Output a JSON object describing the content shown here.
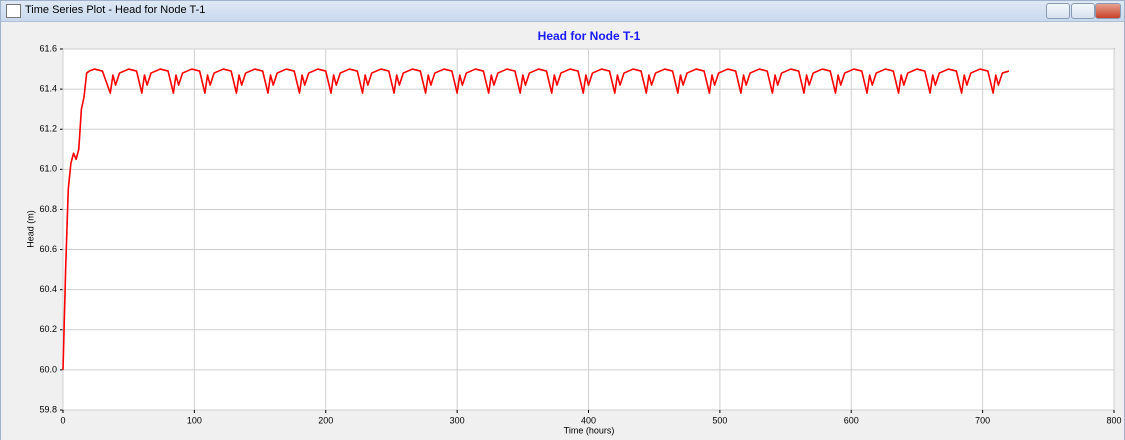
{
  "window": {
    "title": "Time Series Plot - Head for Node T-1"
  },
  "chart_data": {
    "type": "line",
    "title": "Head for Node T-1",
    "xlabel": "Time (hours)",
    "ylabel": "Head (m)",
    "color": "#ff0000",
    "grid": true,
    "xlim": [
      0,
      800
    ],
    "xticks": [
      0,
      100,
      200,
      300,
      400,
      500,
      600,
      700,
      800
    ],
    "ylim": [
      59.8,
      61.6
    ],
    "yticks": [
      59.8,
      {
        "value": 60,
        "label": "60.0"
      },
      60.2,
      60.4,
      60.6,
      60.8,
      {
        "value": 61,
        "label": "61.0"
      },
      61.2,
      61.4,
      61.6
    ],
    "x": [
      0,
      2,
      4,
      6,
      8,
      10,
      12,
      14,
      16,
      18,
      20,
      24,
      30,
      36,
      38,
      40,
      43,
      50,
      56,
      60,
      62,
      64,
      67,
      74,
      80,
      84,
      86,
      88,
      91,
      98,
      104,
      108,
      110,
      112,
      115,
      122,
      128,
      132,
      134,
      136,
      139,
      146,
      152,
      156,
      158,
      160,
      163,
      170,
      176,
      180,
      182,
      184,
      187,
      194,
      200,
      204,
      206,
      208,
      211,
      218,
      224,
      228,
      230,
      232,
      235,
      242,
      248,
      252,
      254,
      256,
      259,
      266,
      272,
      276,
      278,
      280,
      283,
      290,
      296,
      300,
      302,
      304,
      307,
      314,
      320,
      324,
      326,
      328,
      331,
      338,
      344,
      348,
      350,
      352,
      355,
      362,
      368,
      372,
      374,
      376,
      379,
      386,
      392,
      396,
      398,
      400,
      403,
      410,
      416,
      420,
      422,
      424,
      427,
      434,
      440,
      444,
      446,
      448,
      451,
      458,
      464,
      468,
      470,
      472,
      475,
      482,
      488,
      492,
      494,
      496,
      499,
      506,
      512,
      516,
      518,
      520,
      523,
      530,
      536,
      540,
      542,
      544,
      547,
      554,
      560,
      564,
      566,
      568,
      571,
      578,
      584,
      588,
      590,
      592,
      595,
      602,
      608,
      612,
      614,
      616,
      619,
      626,
      632,
      636,
      638,
      640,
      643,
      650,
      656,
      660,
      662,
      664,
      667,
      674,
      680,
      684,
      686,
      688,
      691,
      698,
      704,
      708,
      710,
      712,
      715,
      720
    ],
    "values": [
      60.0,
      60.5,
      60.9,
      61.03,
      61.08,
      61.05,
      61.1,
      61.3,
      61.36,
      61.48,
      61.49,
      61.5,
      61.49,
      61.38,
      61.47,
      61.42,
      61.48,
      61.5,
      61.49,
      61.38,
      61.47,
      61.42,
      61.48,
      61.5,
      61.49,
      61.38,
      61.47,
      61.42,
      61.48,
      61.5,
      61.49,
      61.38,
      61.47,
      61.42,
      61.48,
      61.5,
      61.49,
      61.38,
      61.47,
      61.42,
      61.48,
      61.5,
      61.49,
      61.38,
      61.47,
      61.42,
      61.48,
      61.5,
      61.49,
      61.38,
      61.47,
      61.42,
      61.48,
      61.5,
      61.49,
      61.38,
      61.47,
      61.42,
      61.48,
      61.5,
      61.49,
      61.38,
      61.47,
      61.42,
      61.48,
      61.5,
      61.49,
      61.38,
      61.47,
      61.42,
      61.48,
      61.5,
      61.49,
      61.38,
      61.47,
      61.42,
      61.48,
      61.5,
      61.49,
      61.38,
      61.47,
      61.42,
      61.48,
      61.5,
      61.49,
      61.38,
      61.47,
      61.42,
      61.48,
      61.5,
      61.49,
      61.38,
      61.47,
      61.42,
      61.48,
      61.5,
      61.49,
      61.38,
      61.47,
      61.42,
      61.48,
      61.5,
      61.49,
      61.38,
      61.47,
      61.42,
      61.48,
      61.5,
      61.49,
      61.38,
      61.47,
      61.42,
      61.48,
      61.5,
      61.49,
      61.38,
      61.47,
      61.42,
      61.48,
      61.5,
      61.49,
      61.38,
      61.47,
      61.42,
      61.48,
      61.5,
      61.49,
      61.38,
      61.47,
      61.42,
      61.48,
      61.5,
      61.49,
      61.38,
      61.47,
      61.42,
      61.48,
      61.5,
      61.49,
      61.38,
      61.47,
      61.42,
      61.48,
      61.5,
      61.49,
      61.38,
      61.47,
      61.42,
      61.48,
      61.5,
      61.49,
      61.38,
      61.47,
      61.42,
      61.48,
      61.5,
      61.49,
      61.38,
      61.47,
      61.42,
      61.48,
      61.5,
      61.49,
      61.38,
      61.47,
      61.42,
      61.48,
      61.5,
      61.49,
      61.38,
      61.47,
      61.42,
      61.48,
      61.5,
      61.49,
      61.38,
      61.47,
      61.42,
      61.48,
      61.5,
      61.49,
      61.38,
      61.47,
      61.42,
      61.48,
      61.49
    ]
  }
}
